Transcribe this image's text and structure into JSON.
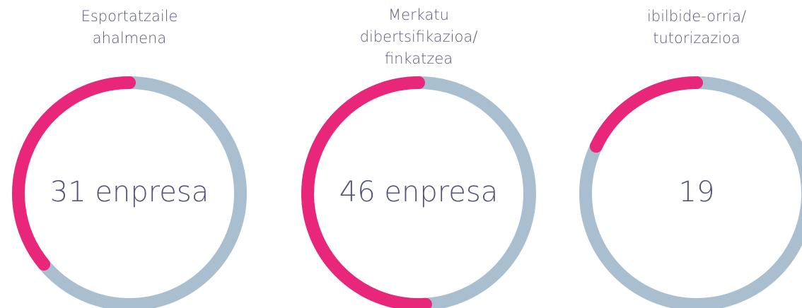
{
  "items": [
    {
      "label": [
        "Esportatzaile",
        "ahalmena"
      ],
      "value_text": "31 enpresa",
      "share": 36
    },
    {
      "label": [
        "Merkatu",
        "dibertsifikazioa/",
        "finkatzea"
      ],
      "value_text": "46 enpresa",
      "share": 51
    },
    {
      "label": [
        "ibilbide-orria/",
        "tutorizazioa"
      ],
      "value_text": "19",
      "share": 18
    }
  ]
}
